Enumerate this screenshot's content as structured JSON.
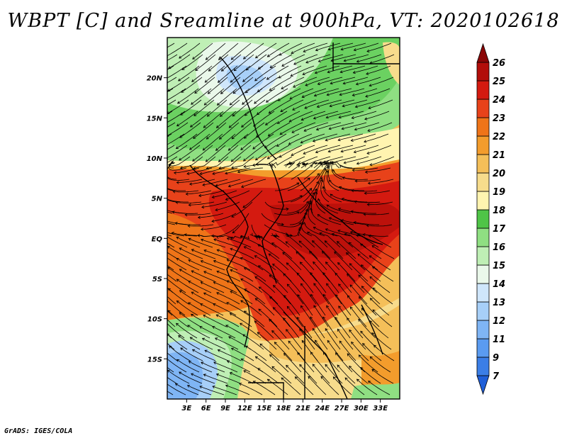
{
  "title": "WBPT [C] and Sreamline at 900hPa, VT: 2020102618",
  "credit": "GrADS: IGES/COLA",
  "map": {
    "projection": "lat-lon",
    "lon_range": [
      0,
      36
    ],
    "lat_range": [
      -20,
      25
    ],
    "variable": "Wet-bulb potential temperature (C)",
    "level": "900hPa",
    "valid_time": "2020102618",
    "lat_ticks": [
      {
        "value": 20,
        "label": "20N"
      },
      {
        "value": 15,
        "label": "15N"
      },
      {
        "value": 10,
        "label": "10N"
      },
      {
        "value": 5,
        "label": "5N"
      },
      {
        "value": 0,
        "label": "EQ"
      },
      {
        "value": -5,
        "label": "5S"
      },
      {
        "value": -10,
        "label": "10S"
      },
      {
        "value": -15,
        "label": "15S"
      }
    ],
    "lon_ticks": [
      {
        "value": 3,
        "label": "3E"
      },
      {
        "value": 6,
        "label": "6E"
      },
      {
        "value": 9,
        "label": "9E"
      },
      {
        "value": 12,
        "label": "12E"
      },
      {
        "value": 15,
        "label": "15E"
      },
      {
        "value": 18,
        "label": "18E"
      },
      {
        "value": 21,
        "label": "21E"
      },
      {
        "value": 24,
        "label": "24E"
      },
      {
        "value": 27,
        "label": "27E"
      },
      {
        "value": 30,
        "label": "30E"
      },
      {
        "value": 33,
        "label": "33E"
      }
    ]
  },
  "colorbar": {
    "levels": [
      "7",
      "9",
      "11",
      "12",
      "13",
      "14",
      "15",
      "16",
      "17",
      "18",
      "19",
      "20",
      "21",
      "22",
      "23",
      "24",
      "25",
      "26"
    ],
    "colors": [
      "#1f5fd8",
      "#3b7ee6",
      "#5a9bf0",
      "#7fb5f5",
      "#a7cff8",
      "#cfe6fb",
      "#eaf8ea",
      "#bfefb5",
      "#8fdf82",
      "#4fc447",
      "#fff4b0",
      "#f7dc8c",
      "#f4bf59",
      "#f39c2c",
      "#ef7418",
      "#e8421a",
      "#d41a10",
      "#b20e0a",
      "#8a0606"
    ]
  }
}
